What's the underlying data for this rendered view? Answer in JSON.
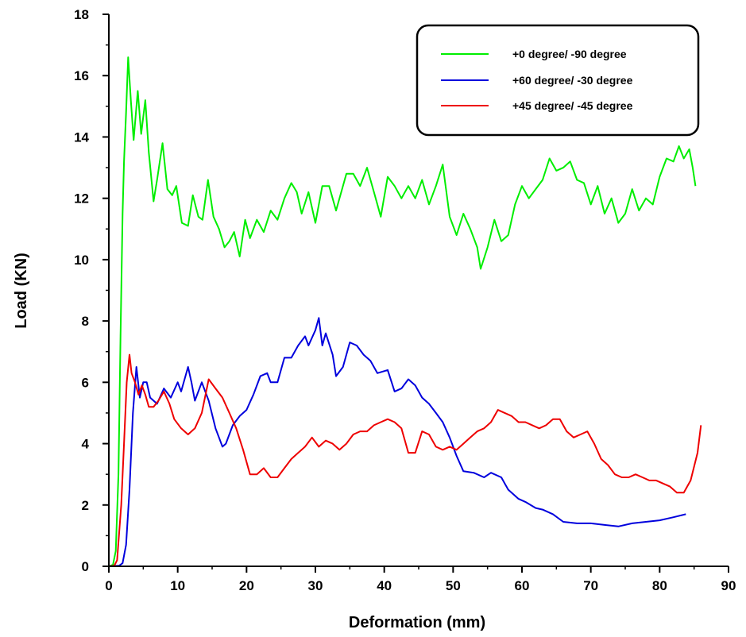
{
  "chart_data": {
    "type": "line",
    "title": "",
    "xlabel": "Deformation (mm)",
    "ylabel": "Load (KN)",
    "xlim": [
      0,
      90
    ],
    "ylim": [
      0,
      18
    ],
    "xticks": [
      "0",
      "10",
      "20",
      "30",
      "40",
      "50",
      "60",
      "70",
      "80",
      "90"
    ],
    "yticks": [
      "0",
      "2",
      "4",
      "6",
      "8",
      "10",
      "12",
      "14",
      "16",
      "18"
    ],
    "grid": false,
    "legend_position": "top-right",
    "series": [
      {
        "name": "+0 degree/ -90 degree",
        "color": "#00ee00",
        "points": [
          [
            0,
            0
          ],
          [
            0.6,
            0.05
          ],
          [
            1.0,
            0.5
          ],
          [
            1.4,
            3.0
          ],
          [
            1.7,
            7.5
          ],
          [
            2.0,
            11.5
          ],
          [
            2.2,
            13.2
          ],
          [
            2.5,
            14.8
          ],
          [
            2.8,
            16.6
          ],
          [
            3.2,
            15.2
          ],
          [
            3.6,
            13.9
          ],
          [
            4.2,
            15.5
          ],
          [
            4.7,
            14.1
          ],
          [
            5.3,
            15.2
          ],
          [
            5.8,
            13.5
          ],
          [
            6.5,
            11.9
          ],
          [
            7.0,
            12.6
          ],
          [
            7.8,
            13.8
          ],
          [
            8.5,
            12.3
          ],
          [
            9.2,
            12.1
          ],
          [
            9.8,
            12.4
          ],
          [
            10.6,
            11.2
          ],
          [
            11.5,
            11.1
          ],
          [
            12.2,
            12.1
          ],
          [
            13.0,
            11.4
          ],
          [
            13.6,
            11.3
          ],
          [
            14.4,
            12.6
          ],
          [
            15.2,
            11.4
          ],
          [
            16.0,
            11.0
          ],
          [
            16.8,
            10.4
          ],
          [
            17.5,
            10.6
          ],
          [
            18.2,
            10.9
          ],
          [
            19.0,
            10.1
          ],
          [
            19.8,
            11.3
          ],
          [
            20.5,
            10.7
          ],
          [
            21.5,
            11.3
          ],
          [
            22.5,
            10.9
          ],
          [
            23.5,
            11.6
          ],
          [
            24.5,
            11.3
          ],
          [
            25.5,
            12.0
          ],
          [
            26.5,
            12.5
          ],
          [
            27.3,
            12.2
          ],
          [
            28.0,
            11.5
          ],
          [
            29.0,
            12.2
          ],
          [
            30.0,
            11.2
          ],
          [
            31.0,
            12.4
          ],
          [
            32.0,
            12.4
          ],
          [
            33.0,
            11.6
          ],
          [
            34.5,
            12.8
          ],
          [
            35.5,
            12.8
          ],
          [
            36.5,
            12.4
          ],
          [
            37.5,
            13.0
          ],
          [
            38.5,
            12.2
          ],
          [
            39.5,
            11.4
          ],
          [
            40.5,
            12.7
          ],
          [
            41.5,
            12.4
          ],
          [
            42.5,
            12.0
          ],
          [
            43.5,
            12.4
          ],
          [
            44.5,
            12.0
          ],
          [
            45.5,
            12.6
          ],
          [
            46.5,
            11.8
          ],
          [
            47.5,
            12.4
          ],
          [
            48.5,
            13.1
          ],
          [
            49.5,
            11.4
          ],
          [
            50.5,
            10.8
          ],
          [
            51.5,
            11.5
          ],
          [
            52.5,
            11.0
          ],
          [
            53.5,
            10.4
          ],
          [
            54.0,
            9.7
          ],
          [
            55.0,
            10.4
          ],
          [
            56.0,
            11.3
          ],
          [
            57.0,
            10.6
          ],
          [
            58.0,
            10.8
          ],
          [
            59.0,
            11.8
          ],
          [
            60.0,
            12.4
          ],
          [
            61.0,
            12.0
          ],
          [
            62.0,
            12.3
          ],
          [
            63.0,
            12.6
          ],
          [
            64.0,
            13.3
          ],
          [
            65.0,
            12.9
          ],
          [
            66.0,
            13.0
          ],
          [
            67.0,
            13.2
          ],
          [
            68.0,
            12.6
          ],
          [
            69.0,
            12.5
          ],
          [
            70.0,
            11.8
          ],
          [
            71.0,
            12.4
          ],
          [
            72.0,
            11.5
          ],
          [
            73.0,
            12.0
          ],
          [
            74.0,
            11.2
          ],
          [
            75.0,
            11.5
          ],
          [
            76.0,
            12.3
          ],
          [
            77.0,
            11.6
          ],
          [
            78.0,
            12.0
          ],
          [
            79.0,
            11.8
          ],
          [
            80.0,
            12.7
          ],
          [
            81.0,
            13.3
          ],
          [
            82.0,
            13.2
          ],
          [
            82.8,
            13.7
          ],
          [
            83.5,
            13.3
          ],
          [
            84.3,
            13.6
          ],
          [
            84.8,
            13.0
          ],
          [
            85.2,
            12.4
          ]
        ]
      },
      {
        "name": "+60 degree/ -30 degree",
        "color": "#0000dd",
        "points": [
          [
            0,
            0
          ],
          [
            1.5,
            0.02
          ],
          [
            2.0,
            0.1
          ],
          [
            2.5,
            0.7
          ],
          [
            3.0,
            2.5
          ],
          [
            3.5,
            5.0
          ],
          [
            4.0,
            6.5
          ],
          [
            4.5,
            5.5
          ],
          [
            5.0,
            6.0
          ],
          [
            5.5,
            6.0
          ],
          [
            6.0,
            5.5
          ],
          [
            7.0,
            5.3
          ],
          [
            8.0,
            5.8
          ],
          [
            9.0,
            5.5
          ],
          [
            10.0,
            6.0
          ],
          [
            10.5,
            5.7
          ],
          [
            11.5,
            6.5
          ],
          [
            12.0,
            6.0
          ],
          [
            12.5,
            5.4
          ],
          [
            13.5,
            6.0
          ],
          [
            14.5,
            5.4
          ],
          [
            15.5,
            4.5
          ],
          [
            16.5,
            3.9
          ],
          [
            17.0,
            4.0
          ],
          [
            18.0,
            4.6
          ],
          [
            19.0,
            4.9
          ],
          [
            20.0,
            5.1
          ],
          [
            21.0,
            5.6
          ],
          [
            22.0,
            6.2
          ],
          [
            23.0,
            6.3
          ],
          [
            23.5,
            6.0
          ],
          [
            24.5,
            6.0
          ],
          [
            25.5,
            6.8
          ],
          [
            26.5,
            6.8
          ],
          [
            27.5,
            7.2
          ],
          [
            28.5,
            7.5
          ],
          [
            29.0,
            7.2
          ],
          [
            30.0,
            7.7
          ],
          [
            30.5,
            8.1
          ],
          [
            31.0,
            7.2
          ],
          [
            31.5,
            7.6
          ],
          [
            32.5,
            6.9
          ],
          [
            33.0,
            6.2
          ],
          [
            34.0,
            6.5
          ],
          [
            35.0,
            7.3
          ],
          [
            36.0,
            7.2
          ],
          [
            37.0,
            6.9
          ],
          [
            38.0,
            6.7
          ],
          [
            39.0,
            6.3
          ],
          [
            40.5,
            6.4
          ],
          [
            41.5,
            5.7
          ],
          [
            42.5,
            5.8
          ],
          [
            43.5,
            6.1
          ],
          [
            44.5,
            5.9
          ],
          [
            45.5,
            5.5
          ],
          [
            46.5,
            5.3
          ],
          [
            47.5,
            5.0
          ],
          [
            48.5,
            4.7
          ],
          [
            49.5,
            4.2
          ],
          [
            50.5,
            3.6
          ],
          [
            51.5,
            3.1
          ],
          [
            53.0,
            3.05
          ],
          [
            54.5,
            2.9
          ],
          [
            55.5,
            3.05
          ],
          [
            57.0,
            2.9
          ],
          [
            58.0,
            2.5
          ],
          [
            59.5,
            2.2
          ],
          [
            60.5,
            2.1
          ],
          [
            62.0,
            1.9
          ],
          [
            63.0,
            1.85
          ],
          [
            64.5,
            1.7
          ],
          [
            66.0,
            1.45
          ],
          [
            68.0,
            1.4
          ],
          [
            70.0,
            1.4
          ],
          [
            72.0,
            1.35
          ],
          [
            74.0,
            1.3
          ],
          [
            76.0,
            1.4
          ],
          [
            78.0,
            1.45
          ],
          [
            80.0,
            1.5
          ],
          [
            82.0,
            1.6
          ],
          [
            83.8,
            1.7
          ]
        ]
      },
      {
        "name": "+45 degree/ -45 degree",
        "color": "#ee0000",
        "points": [
          [
            0,
            0
          ],
          [
            0.8,
            0.02
          ],
          [
            1.2,
            0.2
          ],
          [
            1.8,
            2.0
          ],
          [
            2.2,
            4.0
          ],
          [
            2.6,
            6.0
          ],
          [
            3.0,
            6.9
          ],
          [
            3.3,
            6.3
          ],
          [
            3.8,
            6.0
          ],
          [
            4.3,
            5.6
          ],
          [
            4.8,
            5.9
          ],
          [
            5.3,
            5.6
          ],
          [
            5.8,
            5.2
          ],
          [
            6.5,
            5.2
          ],
          [
            7.2,
            5.4
          ],
          [
            8.0,
            5.7
          ],
          [
            8.8,
            5.3
          ],
          [
            9.5,
            4.8
          ],
          [
            10.5,
            4.5
          ],
          [
            11.5,
            4.3
          ],
          [
            12.5,
            4.5
          ],
          [
            13.5,
            5.0
          ],
          [
            14.5,
            6.1
          ],
          [
            15.5,
            5.8
          ],
          [
            16.5,
            5.5
          ],
          [
            17.5,
            5.0
          ],
          [
            18.5,
            4.5
          ],
          [
            19.5,
            3.8
          ],
          [
            20.5,
            3.0
          ],
          [
            21.5,
            3.0
          ],
          [
            22.5,
            3.2
          ],
          [
            23.5,
            2.9
          ],
          [
            24.5,
            2.9
          ],
          [
            25.5,
            3.2
          ],
          [
            26.5,
            3.5
          ],
          [
            27.5,
            3.7
          ],
          [
            28.5,
            3.9
          ],
          [
            29.5,
            4.2
          ],
          [
            30.5,
            3.9
          ],
          [
            31.5,
            4.1
          ],
          [
            32.5,
            4.0
          ],
          [
            33.5,
            3.8
          ],
          [
            34.5,
            4.0
          ],
          [
            35.5,
            4.3
          ],
          [
            36.5,
            4.4
          ],
          [
            37.5,
            4.4
          ],
          [
            38.5,
            4.6
          ],
          [
            39.5,
            4.7
          ],
          [
            40.5,
            4.8
          ],
          [
            41.5,
            4.7
          ],
          [
            42.5,
            4.5
          ],
          [
            43.5,
            3.7
          ],
          [
            44.5,
            3.7
          ],
          [
            45.5,
            4.4
          ],
          [
            46.5,
            4.3
          ],
          [
            47.5,
            3.9
          ],
          [
            48.5,
            3.8
          ],
          [
            49.5,
            3.9
          ],
          [
            50.5,
            3.8
          ],
          [
            51.5,
            4.0
          ],
          [
            52.5,
            4.2
          ],
          [
            53.5,
            4.4
          ],
          [
            54.5,
            4.5
          ],
          [
            55.5,
            4.7
          ],
          [
            56.5,
            5.1
          ],
          [
            57.5,
            5.0
          ],
          [
            58.5,
            4.9
          ],
          [
            59.5,
            4.7
          ],
          [
            60.5,
            4.7
          ],
          [
            61.5,
            4.6
          ],
          [
            62.5,
            4.5
          ],
          [
            63.5,
            4.6
          ],
          [
            64.5,
            4.8
          ],
          [
            65.5,
            4.8
          ],
          [
            66.5,
            4.4
          ],
          [
            67.5,
            4.2
          ],
          [
            68.5,
            4.3
          ],
          [
            69.5,
            4.4
          ],
          [
            70.5,
            4.0
          ],
          [
            71.5,
            3.5
          ],
          [
            72.5,
            3.3
          ],
          [
            73.5,
            3.0
          ],
          [
            74.5,
            2.9
          ],
          [
            75.5,
            2.9
          ],
          [
            76.5,
            3.0
          ],
          [
            77.5,
            2.9
          ],
          [
            78.5,
            2.8
          ],
          [
            79.5,
            2.8
          ],
          [
            80.5,
            2.7
          ],
          [
            81.5,
            2.6
          ],
          [
            82.5,
            2.4
          ],
          [
            83.5,
            2.4
          ],
          [
            84.5,
            2.8
          ],
          [
            85.5,
            3.7
          ],
          [
            86.0,
            4.6
          ]
        ]
      }
    ]
  }
}
